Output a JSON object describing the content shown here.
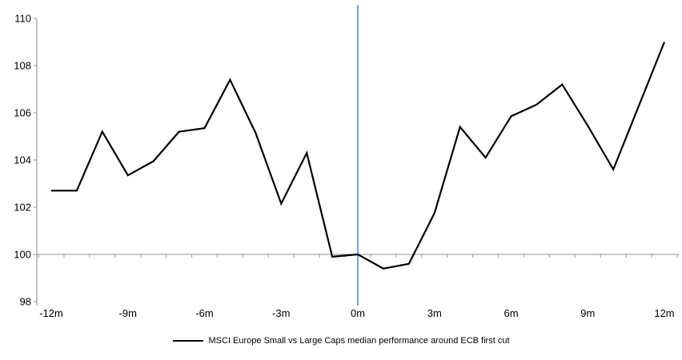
{
  "chart_data": {
    "type": "line",
    "title": "",
    "xlabel": "",
    "ylabel": "",
    "x": [
      -12,
      -11,
      -10,
      -9,
      -8,
      -7,
      -6,
      -5,
      -4,
      -3,
      -2,
      -1,
      0,
      1,
      2,
      3,
      4,
      5,
      6,
      7,
      8,
      9,
      10,
      11,
      12
    ],
    "series": [
      {
        "name": "MSCI Europe Small vs Large Caps median performance around ECB first cut",
        "values": [
          102.7,
          102.7,
          105.2,
          103.35,
          103.95,
          105.2,
          105.35,
          107.4,
          105.15,
          102.15,
          104.3,
          99.9,
          100.0,
          99.4,
          99.6,
          101.75,
          105.4,
          104.1,
          105.85,
          106.35,
          107.2,
          105.45,
          103.6,
          106.3,
          109.0
        ],
        "color": "#000000"
      }
    ],
    "ylim": [
      98,
      110
    ],
    "ytick_values": [
      110,
      108,
      106,
      104,
      102,
      100,
      98
    ],
    "ytick_labels": [
      "110",
      "108",
      "106",
      "104",
      "102",
      "100",
      "98"
    ],
    "xtick_months": [
      -12,
      -9,
      -6,
      -3,
      0,
      3,
      6,
      9,
      12
    ],
    "xtick_labels": [
      "-12m",
      "-9m",
      "-6m",
      "-3m",
      "0m",
      "3m",
      "6m",
      "9m",
      "12m"
    ],
    "baseline_value": 100,
    "event_line_x": 0,
    "grid": "baseline-only",
    "legend_position": "bottom-center",
    "colors": {
      "series": "#000000",
      "event_line": "#7EA6D9",
      "axis": "#A6A6A6",
      "text": "#000000",
      "background": "#FFFFFF"
    }
  },
  "legend": {
    "label": "MSCI Europe Small vs Large Caps median performance around ECB first cut"
  }
}
